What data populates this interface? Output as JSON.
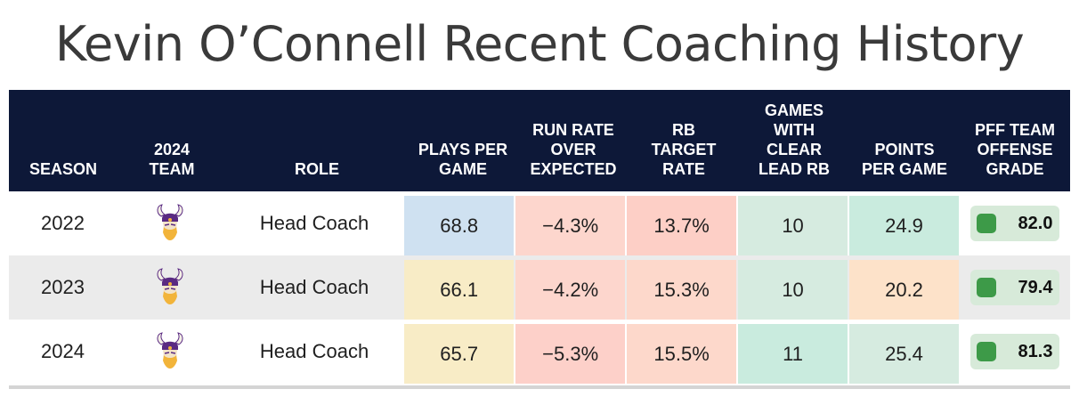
{
  "title": "Kevin O’Connell Recent Coaching History",
  "headers": {
    "season": "SEASON",
    "team": "2024\nTEAM",
    "role": "ROLE",
    "plays": "PLAYS PER\nGAME",
    "run_rate": "RUN RATE\nOVER\nEXPECTED",
    "rb_target": "RB\nTARGET\nRATE",
    "games_lead": "GAMES\nWITH\nCLEAR\nLEAD RB",
    "points": "POINTS\nPER GAME",
    "pff": "PFF TEAM\nOFFENSE\nGRADE"
  },
  "rows": [
    {
      "season": "2022",
      "team_logo": "minnesota-vikings-logo",
      "role": "Head Coach",
      "plays": "68.8",
      "run_rate": "−4.3%",
      "rb_target": "13.7%",
      "games_lead": "10",
      "points": "24.9",
      "pff": "82.0",
      "colors": {
        "plays": "#cfe1f1",
        "run_rate": "#fdd6cd",
        "rb_target": "#fdcfc6",
        "games_lead": "#d6ebe0",
        "points": "#c9ebde",
        "pff_box": "#d7ead9",
        "pff_dot": "#3d9a48"
      }
    },
    {
      "season": "2023",
      "team_logo": "minnesota-vikings-logo",
      "role": "Head Coach",
      "plays": "66.1",
      "run_rate": "−4.2%",
      "rb_target": "15.3%",
      "games_lead": "10",
      "points": "20.2",
      "pff": "79.4",
      "colors": {
        "plays": "#f8ecc6",
        "run_rate": "#fdd6cd",
        "rb_target": "#fdd8cb",
        "games_lead": "#d6ebe0",
        "points": "#fde2c9",
        "pff_box": "#d7ead9",
        "pff_dot": "#3d9a48"
      }
    },
    {
      "season": "2024",
      "team_logo": "minnesota-vikings-logo",
      "role": "Head Coach",
      "plays": "65.7",
      "run_rate": "−5.3%",
      "rb_target": "15.5%",
      "games_lead": "11",
      "points": "25.4",
      "pff": "81.3",
      "colors": {
        "plays": "#f8ecc6",
        "run_rate": "#fdd0c9",
        "rb_target": "#fdd8cb",
        "games_lead": "#c9ebde",
        "points": "#d6ebe0",
        "pff_box": "#d7ead9",
        "pff_dot": "#3d9a48"
      }
    }
  ]
}
